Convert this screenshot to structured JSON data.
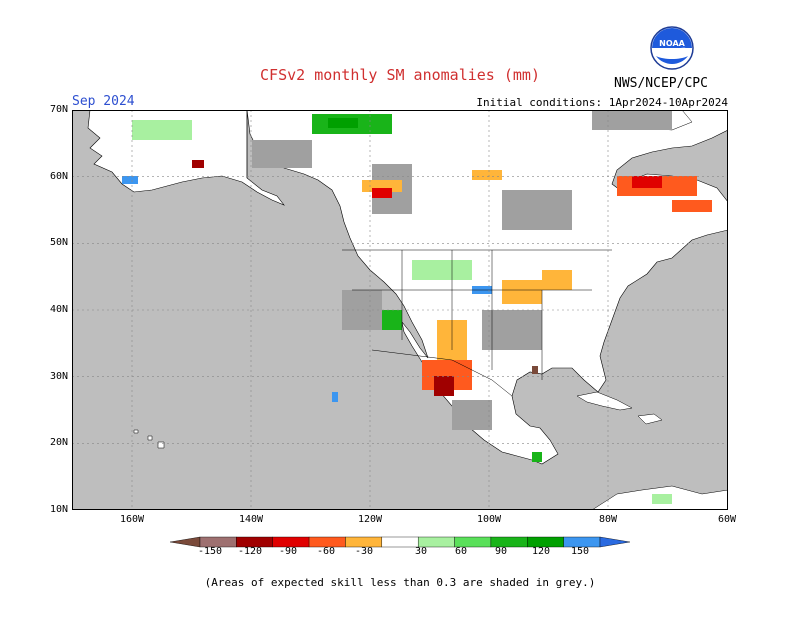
{
  "header": {
    "title": "CFSv2 monthly SM anomalies (mm)",
    "period": "Sep 2024",
    "initial_conditions": "Initial conditions: 1Apr2024-10Apr2024",
    "agency": "NWS/NCEP/CPC",
    "logo_text": "NOAA"
  },
  "axes": {
    "lat_labels": [
      "70N",
      "60N",
      "50N",
      "40N",
      "30N",
      "20N",
      "10N"
    ],
    "lon_labels": [
      "160W",
      "140W",
      "120W",
      "100W",
      "80W",
      "60W"
    ]
  },
  "colorbar": {
    "labels": [
      "-150",
      "-120",
      "-90",
      "-60",
      "-30",
      "30",
      "60",
      "90",
      "120",
      "150"
    ],
    "colors": [
      "#7a4a3a",
      "#9e7070",
      "#a00000",
      "#e00000",
      "#ff5a1e",
      "#ffb53a",
      "#ffffff",
      "#a8f0a0",
      "#5ae05a",
      "#19b419",
      "#00a000",
      "#3c96f0",
      "#2a6ae0"
    ]
  },
  "legend_note": "(Areas of expected skill less than 0.3 are shaded in grey.)",
  "colors": {
    "ocean": "#bebebe",
    "land_noskill": "#ffffff",
    "skill_grey": "#a0a0a0",
    "title_red": "#d03030",
    "period_blue": "#2d4fd0"
  }
}
